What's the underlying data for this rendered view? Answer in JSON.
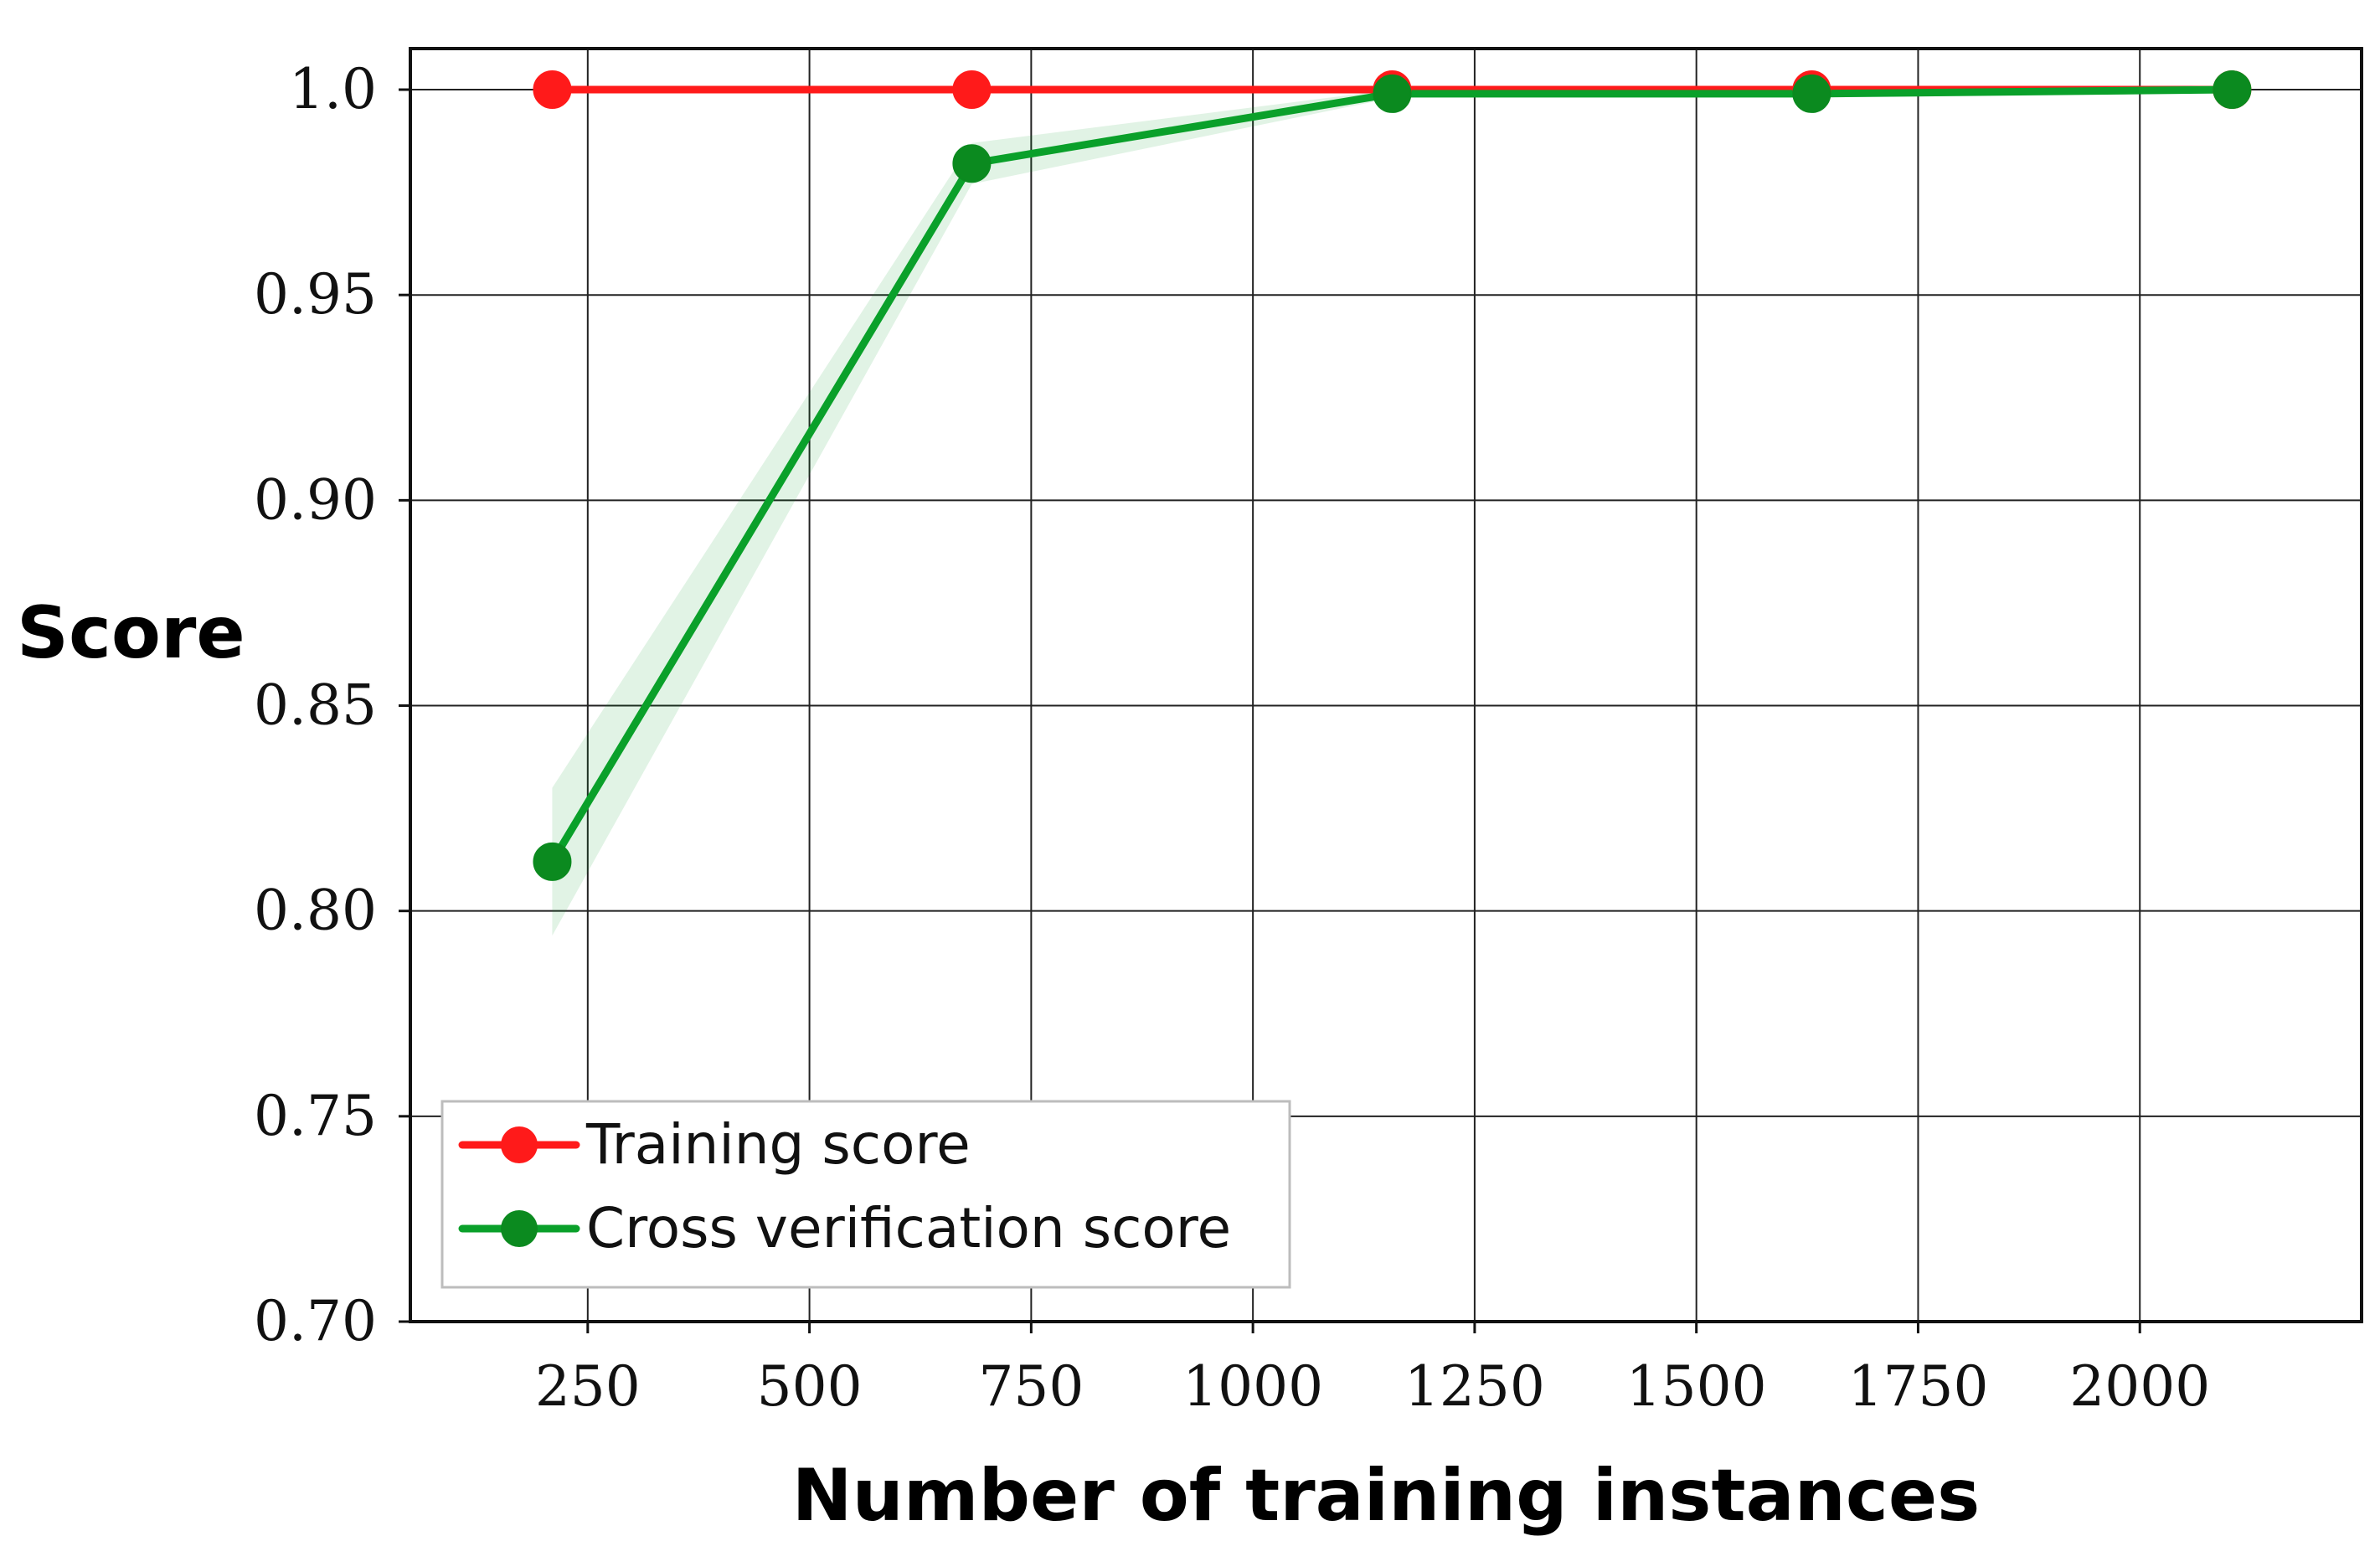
{
  "chart_data": {
    "type": "line",
    "title": "",
    "xlabel": "Number of training instances",
    "ylabel": "Score",
    "xlim": [
      50,
      2250
    ],
    "ylim": [
      0.7,
      1.01
    ],
    "xticks": [
      250,
      500,
      750,
      1000,
      1250,
      1500,
      1750,
      2000
    ],
    "yticks": [
      0.7,
      0.75,
      0.8,
      0.85,
      0.9,
      0.95,
      1.0
    ],
    "ytick_labels": [
      "0.70",
      "0.75",
      "0.80",
      "0.85",
      "0.90",
      "0.95",
      "1.0"
    ],
    "grid": true,
    "legend_position": "lower-left",
    "x": [
      210,
      683,
      1157,
      1630,
      2104
    ],
    "series": [
      {
        "name": "Training score",
        "color": "#ff1a1a",
        "values": [
          1.0,
          1.0,
          1.0,
          1.0,
          1.0
        ],
        "band": [
          0.0,
          0.0,
          0.0,
          0.0,
          0.0
        ]
      },
      {
        "name": "Cross verification score",
        "color": "#0aa02a",
        "marker_color": "#0b8a1f",
        "values": [
          0.812,
          0.982,
          0.999,
          0.999,
          1.0
        ],
        "band": [
          0.018,
          0.005,
          0.001,
          0.001,
          0.0
        ]
      }
    ]
  }
}
